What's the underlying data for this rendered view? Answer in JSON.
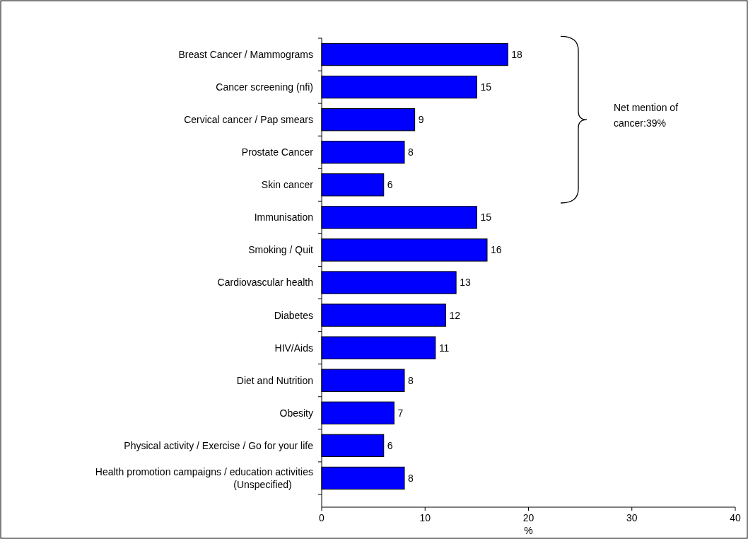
{
  "chart_data": {
    "type": "bar",
    "orientation": "horizontal",
    "xlabel": "%",
    "categories": [
      "Breast Cancer / Mammograms",
      "Cancer screening (nfi)",
      "Cervical cancer / Pap smears",
      "Prostate Cancer",
      "Skin cancer",
      "Immunisation",
      "Smoking / Quit",
      "Cardiovascular health",
      "Diabetes",
      "HIV/Aids",
      "Diet and Nutrition",
      "Obesity",
      "Physical activity / Exercise / Go for your life",
      "Health promotion campaigns / education activities\n(Unspecified)"
    ],
    "values": [
      18,
      15,
      9,
      8,
      6,
      15,
      16,
      13,
      12,
      11,
      8,
      7,
      6,
      8
    ],
    "color": "#0000ff",
    "data_labels": true,
    "xlim": [
      0,
      40
    ],
    "xticks": [
      0,
      10,
      20,
      30,
      40
    ],
    "grid": false,
    "annotations": [
      "Net mention of cancer:39%"
    ]
  }
}
